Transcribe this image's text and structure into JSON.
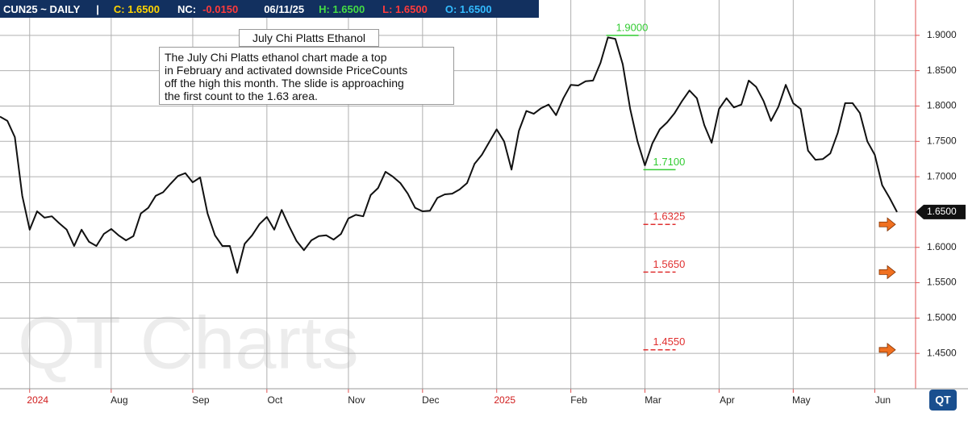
{
  "header": {
    "symbol": "CUN25 ~ DAILY",
    "separator": "|",
    "close": "C: 1.6500",
    "net_change_label": "NC:",
    "net_change": "-0.0150",
    "date": "06/11/25",
    "high": "H: 1.6500",
    "low": "L: 1.6500",
    "open": "O: 1.6500"
  },
  "chart_data": {
    "type": "line",
    "color": "#111111",
    "annotation_title": "July Chi Platts Ethanol",
    "annotation_text": [
      "The July Chi Platts ethanol chart made a top",
      "in February and activated downside PriceCounts",
      "off the high this month.  The slide is approaching",
      "the first count to the 1.63 area."
    ],
    "watermark": "QT Charts",
    "logo": "QT",
    "categories": [
      null,
      null,
      null,
      null,
      "2024",
      null,
      null,
      null,
      null,
      null,
      null,
      null,
      null,
      null,
      null,
      "Aug",
      null,
      null,
      null,
      null,
      null,
      null,
      null,
      null,
      null,
      null,
      "Sep",
      null,
      null,
      null,
      null,
      null,
      null,
      null,
      null,
      null,
      "Oct",
      null,
      null,
      null,
      null,
      null,
      null,
      null,
      null,
      null,
      null,
      "Nov",
      null,
      null,
      null,
      null,
      null,
      null,
      null,
      null,
      null,
      "Dec",
      null,
      null,
      null,
      null,
      null,
      null,
      null,
      null,
      null,
      "2025",
      null,
      null,
      null,
      null,
      null,
      null,
      null,
      null,
      null,
      "Feb",
      null,
      null,
      null,
      null,
      null,
      null,
      null,
      null,
      null,
      "Mar",
      null,
      null,
      null,
      null,
      null,
      null,
      null,
      null,
      null,
      "Apr",
      null,
      null,
      null,
      null,
      null,
      null,
      null,
      null,
      null,
      "May",
      null,
      null,
      null,
      null,
      null,
      null,
      null,
      null,
      null,
      null,
      "Jun",
      null,
      null,
      null
    ],
    "values": [
      1.785,
      1.779,
      1.756,
      1.673,
      1.625,
      1.651,
      1.642,
      1.644,
      1.634,
      1.625,
      1.602,
      1.625,
      1.608,
      1.602,
      1.619,
      1.626,
      1.617,
      1.61,
      1.616,
      1.648,
      1.656,
      1.673,
      1.678,
      1.69,
      1.701,
      1.705,
      1.692,
      1.699,
      1.648,
      1.617,
      1.602,
      1.602,
      1.564,
      1.605,
      1.617,
      1.633,
      1.643,
      1.625,
      1.653,
      1.63,
      1.609,
      1.596,
      1.61,
      1.616,
      1.617,
      1.611,
      1.619,
      1.641,
      1.646,
      1.644,
      1.674,
      1.684,
      1.707,
      1.7,
      1.691,
      1.676,
      1.656,
      1.651,
      1.652,
      1.67,
      1.675,
      1.676,
      1.682,
      1.691,
      1.718,
      1.731,
      1.749,
      1.767,
      1.75,
      1.71,
      1.765,
      1.793,
      1.789,
      1.797,
      1.802,
      1.787,
      1.811,
      1.83,
      1.829,
      1.835,
      1.836,
      1.861,
      1.897,
      1.895,
      1.859,
      1.796,
      1.75,
      1.716,
      1.747,
      1.767,
      1.777,
      1.79,
      1.807,
      1.822,
      1.811,
      1.773,
      1.748,
      1.796,
      1.811,
      1.798,
      1.802,
      1.836,
      1.827,
      1.807,
      1.779,
      1.799,
      1.83,
      1.804,
      1.796,
      1.737,
      1.724,
      1.725,
      1.733,
      1.762,
      1.804,
      1.804,
      1.79,
      1.75,
      1.731,
      1.688,
      1.67,
      1.65
    ],
    "ylim": [
      1.4,
      1.95
    ],
    "yticks": [
      {
        "value": 1.45,
        "label": "1.4500"
      },
      {
        "value": 1.5,
        "label": "1.5000"
      },
      {
        "value": 1.55,
        "label": "1.5500"
      },
      {
        "value": 1.6,
        "label": "1.6000"
      },
      {
        "value": 1.65,
        "label": "1.6500"
      },
      {
        "value": 1.7,
        "label": "1.7000"
      },
      {
        "value": 1.75,
        "label": "1.7500"
      },
      {
        "value": 1.8,
        "label": "1.8000"
      },
      {
        "value": 1.85,
        "label": "1.8500"
      },
      {
        "value": 1.9,
        "label": "1.9000"
      }
    ],
    "grid": true,
    "levels": [
      {
        "value": 1.9,
        "label": "1.9000",
        "color": "#33cc33",
        "dashed": false,
        "arrow": false,
        "at": 82
      },
      {
        "value": 1.71,
        "label": "1.7100",
        "color": "#33cc33",
        "dashed": false,
        "arrow": false,
        "at": 87
      },
      {
        "value": 1.6325,
        "label": "1.6325",
        "color": "#e03030",
        "dashed": true,
        "arrow": true,
        "at": 87
      },
      {
        "value": 1.565,
        "label": "1.5650",
        "color": "#e03030",
        "dashed": true,
        "arrow": true,
        "at": 87
      },
      {
        "value": 1.455,
        "label": "1.4550",
        "color": "#e03030",
        "dashed": true,
        "arrow": true,
        "at": 87
      }
    ],
    "last_value": {
      "value": 1.65,
      "label": "1.6500"
    }
  }
}
